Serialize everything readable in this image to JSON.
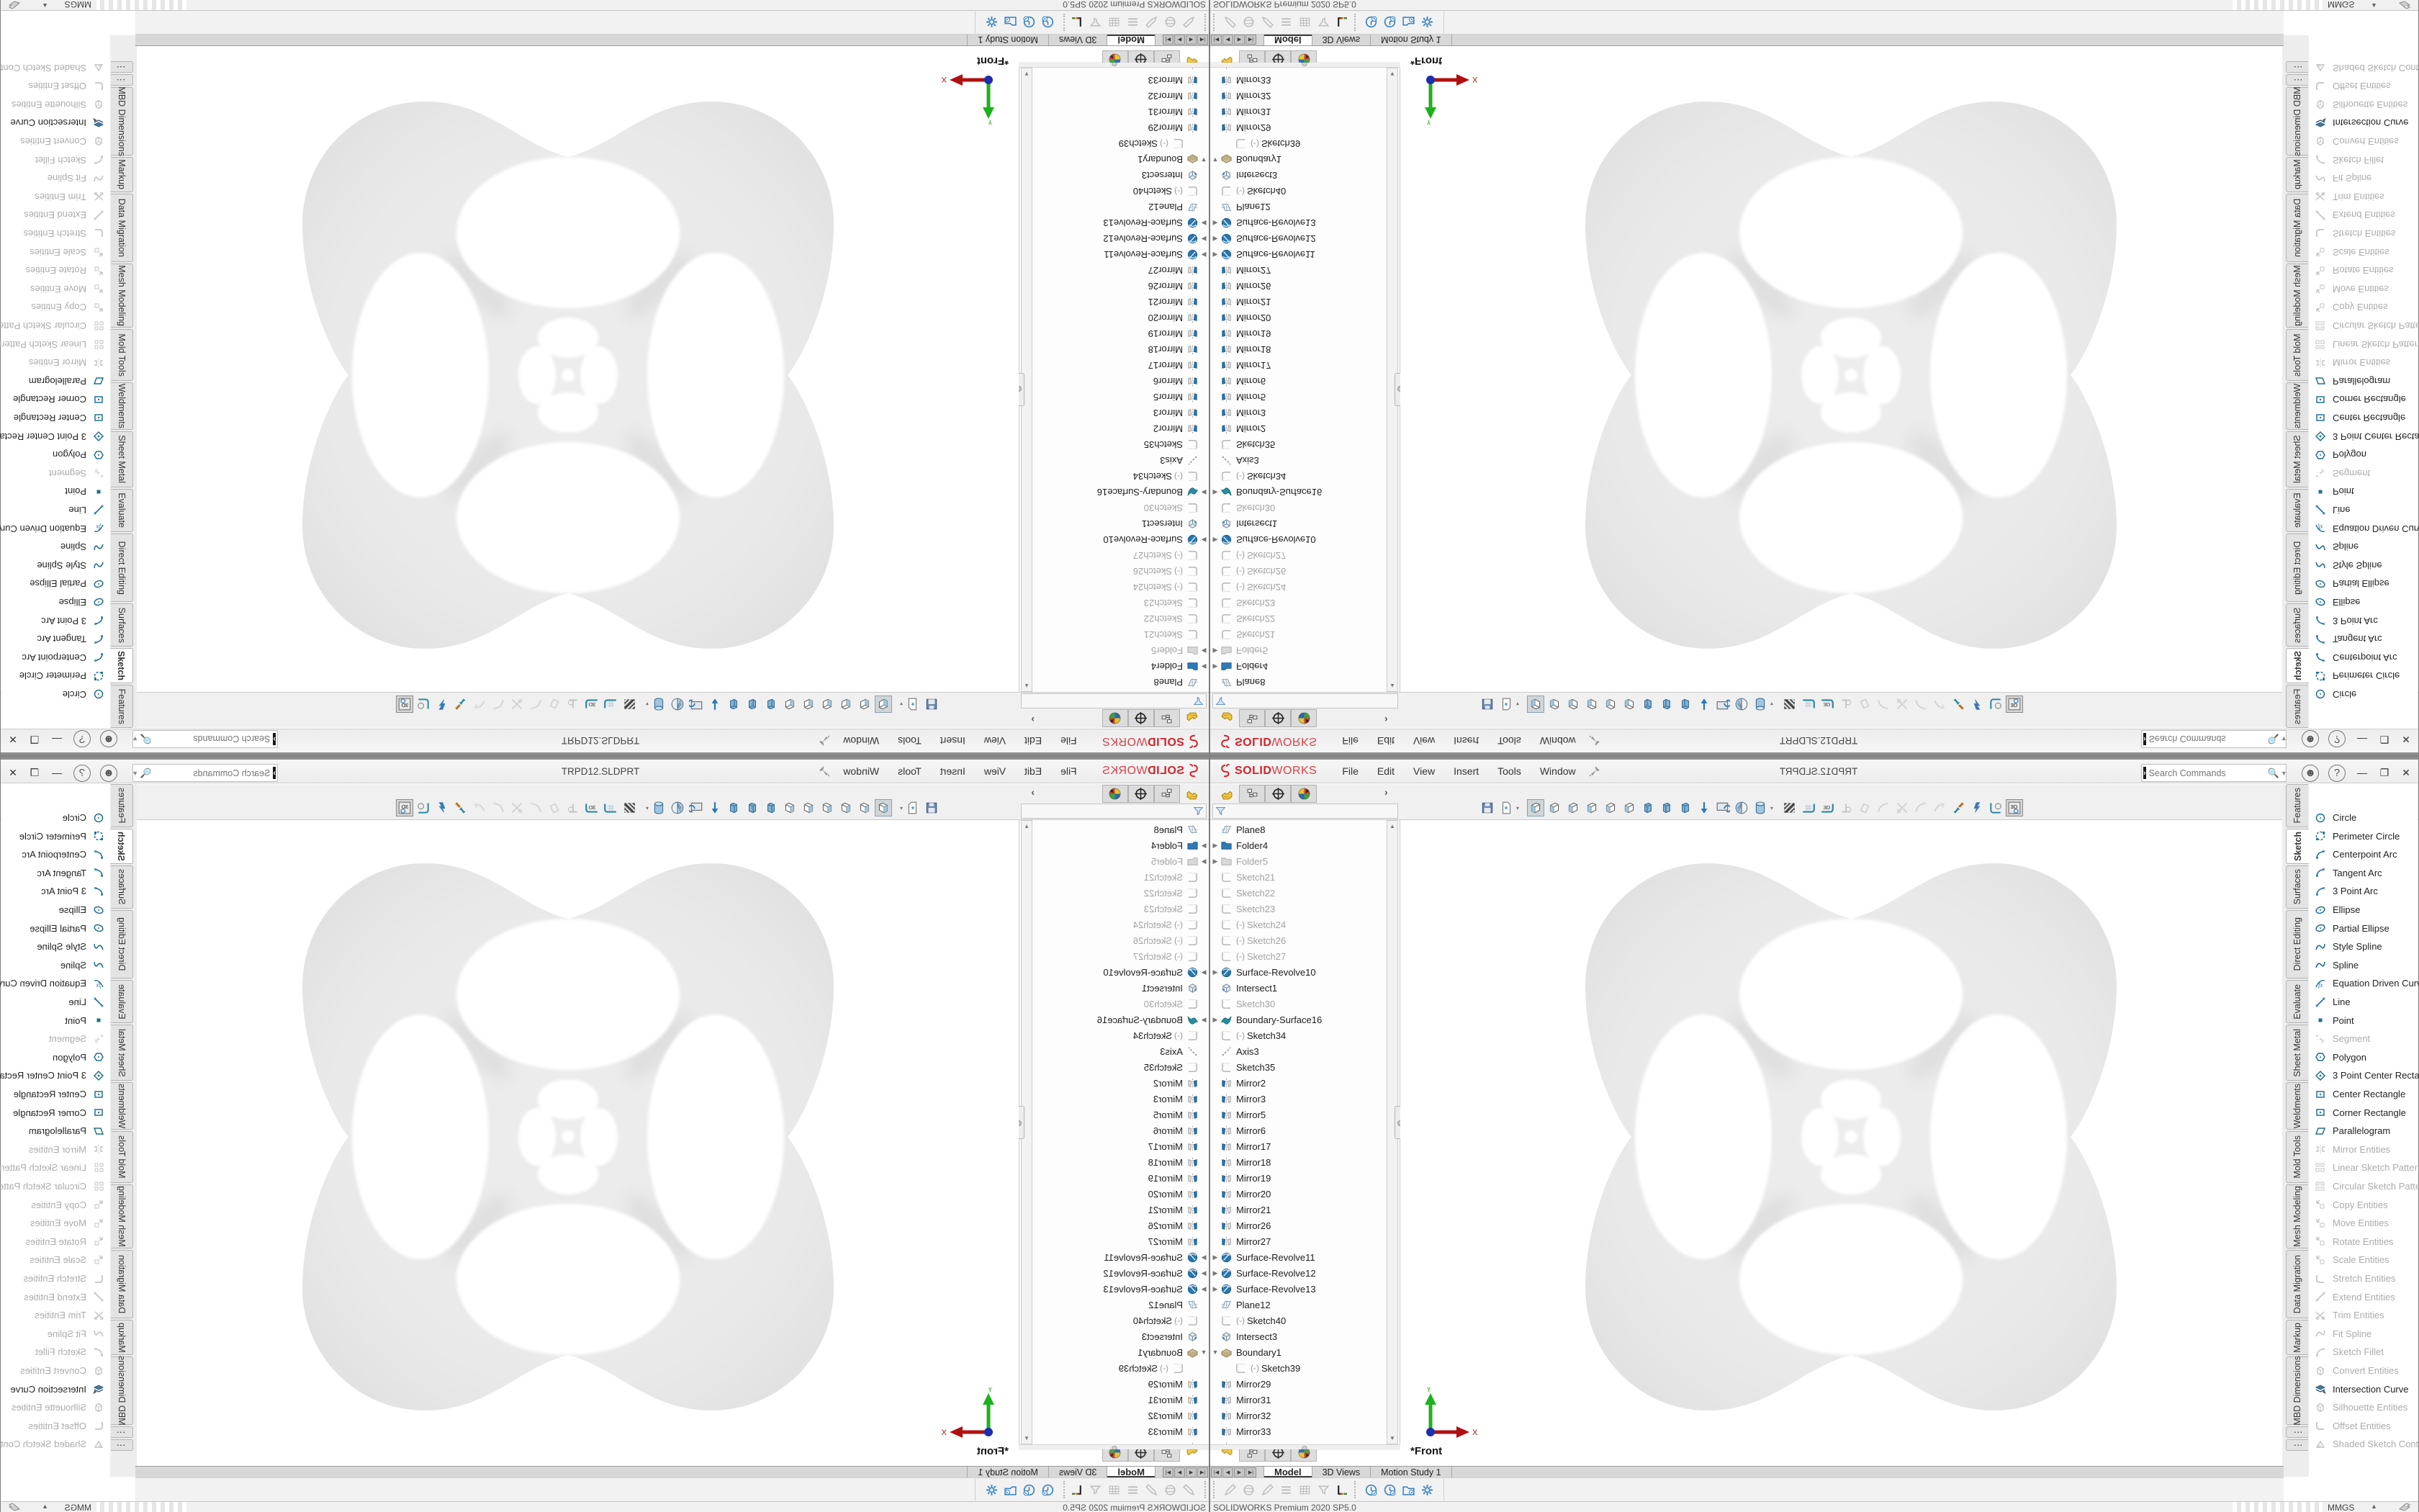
{
  "app": {
    "brand_bold": "SOLID",
    "brand_light": "WORKS",
    "statusbar_left": "SOLIDWORKS Premium 2020 SP5.0",
    "units": "MMGS"
  },
  "menubar": {
    "menus": [
      "File",
      "Edit",
      "View",
      "Insert",
      "Tools",
      "Window"
    ],
    "title": "TRPD12.SLDPRT",
    "search_placeholder": "Search Commands",
    "right_icons": [
      "user-account-icon",
      "help-icon"
    ],
    "window_controls": [
      {
        "name": "minimize-button",
        "glyph": "—"
      },
      {
        "name": "restore-button",
        "glyph": "❐"
      },
      {
        "name": "close-button",
        "glyph": "✕"
      }
    ]
  },
  "left_panel": {
    "header_tabs": [
      {
        "name": "featuremanager-tab",
        "icon": "part-icon",
        "active": true
      },
      {
        "name": "propertymanager-tab",
        "icon": "property-icon"
      },
      {
        "name": "configurationmanager-tab",
        "icon": "target-icon"
      },
      {
        "name": "displaymanager-tab",
        "icon": "display-ball-icon"
      }
    ],
    "chevron": "›",
    "filter_icon": "filter-funnel-icon"
  },
  "view_toolbar": {
    "icons": [
      {
        "n": "save-icon",
        "k": "floppy"
      },
      {
        "n": "print-preview-icon",
        "k": "page",
        "caret": true
      },
      {
        "sp": 8
      },
      {
        "n": "view-front-icon",
        "k": "cube",
        "pressed": true
      },
      {
        "n": "view-back-icon",
        "k": "cube"
      },
      {
        "n": "view-left-icon",
        "k": "cube"
      },
      {
        "n": "view-right-icon",
        "k": "cube"
      },
      {
        "n": "view-top-icon",
        "k": "cube"
      },
      {
        "n": "view-bottom-icon",
        "k": "cube"
      },
      {
        "n": "view-isometric-icon",
        "k": "prism"
      },
      {
        "n": "view-trimetric-icon",
        "k": "prism"
      },
      {
        "n": "view-dimetric-icon",
        "k": "prism"
      },
      {
        "n": "normal-to-icon",
        "k": "darr"
      },
      {
        "n": "view-selector-icon",
        "k": "monitor"
      },
      {
        "n": "section-view-icon",
        "k": "section"
      },
      {
        "n": "display-style-icon",
        "k": "cyl",
        "caret": true
      },
      {
        "sp": 8
      },
      {
        "n": "appearance-texture-icon",
        "k": "tex"
      },
      {
        "n": "grid-floor-icon",
        "k": "grid"
      },
      {
        "n": "grid-3d-icon",
        "k": "grid3d"
      },
      {
        "n": "reference-point-icon",
        "k": "g1",
        "gray": true
      },
      {
        "n": "instant3d-icon",
        "k": "g2",
        "gray": true
      },
      {
        "n": "offset-curve-icon",
        "k": "g3",
        "gray": true
      },
      {
        "n": "trim-tool-icon",
        "k": "g4",
        "gray": true
      },
      {
        "n": "fillet-arc-icon",
        "k": "g3",
        "gray": true
      },
      {
        "n": "spline-pencil-icon",
        "k": "g5",
        "gray": true
      },
      {
        "n": "sketch-ink-icon",
        "k": "brush"
      },
      {
        "n": "quick-snap-icon",
        "k": "bolt"
      },
      {
        "n": "sketch-picture-icon",
        "k": "cornc"
      },
      {
        "n": "3d-sketch-icon",
        "k": "box3d",
        "boxed": true
      }
    ]
  },
  "feature_tree": {
    "items": [
      {
        "label": "Plane8",
        "icon": "plane-icon"
      },
      {
        "label": "Folder4",
        "icon": "folder-icon",
        "arrow": "r"
      },
      {
        "label": "Folder5",
        "icon": "folder-gray-icon",
        "arrow": "r",
        "gray": true
      },
      {
        "label": "Sketch21",
        "icon": "sketch-icon",
        "gray": true
      },
      {
        "label": "Sketch22",
        "icon": "sketch-icon",
        "gray": true
      },
      {
        "label": "Sketch23",
        "icon": "sketch-icon",
        "gray": true
      },
      {
        "label": "Sketch24",
        "icon": "sketch-icon",
        "gray": true,
        "prefix": "(-)"
      },
      {
        "label": "Sketch26",
        "icon": "sketch-icon",
        "gray": true,
        "prefix": "(-)"
      },
      {
        "label": "Sketch27",
        "icon": "sketch-icon",
        "gray": true,
        "prefix": "(-)"
      },
      {
        "label": "Surface-Revolve10",
        "icon": "surface-revolve-icon",
        "arrow": "r"
      },
      {
        "label": "Intersect1",
        "icon": "intersect-icon"
      },
      {
        "label": "Sketch30",
        "icon": "sketch-icon",
        "gray": true
      },
      {
        "label": "Boundary-Surface16",
        "icon": "boundary-surface-icon",
        "arrow": "r"
      },
      {
        "label": "Sketch34",
        "icon": "sketch-icon",
        "prefix": "(-)"
      },
      {
        "label": "Axis3",
        "icon": "axis-icon"
      },
      {
        "label": "Sketch35",
        "icon": "sketch-icon"
      },
      {
        "label": "Mirror2",
        "icon": "mirror-icon"
      },
      {
        "label": "Mirror3",
        "icon": "mirror-icon"
      },
      {
        "label": "Mirror5",
        "icon": "mirror-icon"
      },
      {
        "label": "Mirror6",
        "icon": "mirror-icon"
      },
      {
        "label": "Mirror17",
        "icon": "mirror-icon"
      },
      {
        "label": "Mirror18",
        "icon": "mirror-icon"
      },
      {
        "label": "Mirror19",
        "icon": "mirror-icon"
      },
      {
        "label": "Mirror20",
        "icon": "mirror-icon"
      },
      {
        "label": "Mirror21",
        "icon": "mirror-icon"
      },
      {
        "label": "Mirror26",
        "icon": "mirror-icon"
      },
      {
        "label": "Mirror27",
        "icon": "mirror-icon"
      },
      {
        "label": "Surface-Revolve11",
        "icon": "surface-revolve-icon",
        "arrow": "r"
      },
      {
        "label": "Surface-Revolve12",
        "icon": "surface-revolve-icon",
        "arrow": "r"
      },
      {
        "label": "Surface-Revolve13",
        "icon": "surface-revolve-icon",
        "arrow": "r"
      },
      {
        "label": "Plane12",
        "icon": "plane-icon"
      },
      {
        "label": "Sketch40",
        "icon": "sketch-icon",
        "prefix": "(-)"
      },
      {
        "label": "Intersect3",
        "icon": "intersect-icon"
      },
      {
        "label": "Boundary1",
        "icon": "boundary-icon",
        "arrow": "d"
      },
      {
        "label": "Sketch39",
        "icon": "sketch-icon",
        "prefix": "(-)",
        "indent": 1
      },
      {
        "label": "Mirror29",
        "icon": "mirror-icon"
      },
      {
        "label": "Mirror31",
        "icon": "mirror-icon"
      },
      {
        "label": "Mirror32",
        "icon": "mirror-icon"
      },
      {
        "label": "Mirror33",
        "icon": "mirror-icon"
      },
      {
        "label": "",
        "icon": "mirror-icon",
        "clipped": true
      }
    ]
  },
  "right_tabs": {
    "tabs": [
      {
        "label": "Features"
      },
      {
        "label": "Sketch",
        "active": true
      },
      {
        "label": "Surfaces"
      },
      {
        "label": "Direct Editing"
      },
      {
        "label": "Evaluate"
      },
      {
        "label": "Sheet Metal"
      },
      {
        "label": "Weldments"
      },
      {
        "label": "Mold Tools"
      },
      {
        "label": "Mesh Modeling"
      },
      {
        "label": "Data Migration"
      },
      {
        "label": "Markup"
      },
      {
        "label": "MBD Dimensions"
      },
      {
        "label": "⋮",
        "dots": true
      },
      {
        "label": "⋮",
        "dots": true
      }
    ]
  },
  "sketch_tools": {
    "items": [
      {
        "label": "Circle",
        "icon": "circle-icon",
        "on": true
      },
      {
        "label": "Perimeter Circle",
        "icon": "perimeter-circle-icon",
        "on": true
      },
      {
        "label": "Centerpoint Arc",
        "icon": "arc-icon",
        "on": true
      },
      {
        "label": "Tangent Arc",
        "icon": "arc-icon",
        "on": true
      },
      {
        "label": "3 Point Arc",
        "icon": "arc-icon",
        "on": true
      },
      {
        "label": "Ellipse",
        "icon": "ellipse-icon",
        "on": true
      },
      {
        "label": "Partial Ellipse",
        "icon": "ellipse-icon",
        "on": true
      },
      {
        "label": "Style Spline",
        "icon": "spline-icon",
        "on": true
      },
      {
        "label": "Spline",
        "icon": "spline-icon",
        "on": true
      },
      {
        "label": "Equation Driven Curve",
        "icon": "fx-curve-icon",
        "on": true
      },
      {
        "label": "Line",
        "icon": "line-icon",
        "on": true
      },
      {
        "label": "Point",
        "icon": "point-icon",
        "on": true
      },
      {
        "label": "Segment",
        "icon": "segment-icon",
        "on": false
      },
      {
        "label": "Polygon",
        "icon": "polygon-icon",
        "on": true
      },
      {
        "label": "3 Point Center Recta...",
        "icon": "diamond-rect-icon",
        "on": true
      },
      {
        "label": "Center Rectangle",
        "icon": "rect-icon",
        "on": true
      },
      {
        "label": "Corner Rectangle",
        "icon": "rect-icon",
        "on": true
      },
      {
        "label": "Parallelogram",
        "icon": "parallelogram-icon",
        "on": true
      },
      {
        "label": "Mirror Entities",
        "icon": "mirror-entities-icon",
        "on": false
      },
      {
        "label": "Linear Sketch Pattern",
        "icon": "pattern-icon",
        "on": false
      },
      {
        "label": "Circular Sketch Pattern",
        "icon": "pattern-icon",
        "on": false
      },
      {
        "label": "Copy Entities",
        "icon": "transform-icon",
        "on": false
      },
      {
        "label": "Move Entities",
        "icon": "transform-icon",
        "on": false
      },
      {
        "label": "Rotate Entities",
        "icon": "transform-icon",
        "on": false
      },
      {
        "label": "Scale Entities",
        "icon": "transform-icon",
        "on": false
      },
      {
        "label": "Stretch Entities",
        "icon": "corner-icon",
        "on": false
      },
      {
        "label": "Extend Entities",
        "icon": "line-icon",
        "on": false
      },
      {
        "label": "Trim Entities",
        "icon": "trim-icon",
        "on": false
      },
      {
        "label": "Fit Spline",
        "icon": "spline-icon",
        "on": false
      },
      {
        "label": "Sketch Fillet",
        "icon": "arc-icon",
        "on": false
      },
      {
        "label": "Convert Entities",
        "icon": "convert-icon",
        "on": false
      },
      {
        "label": "Intersection Curve",
        "icon": "intersection-curve-icon",
        "on": true
      },
      {
        "label": "Silhouette Entities",
        "icon": "convert-icon",
        "on": false
      },
      {
        "label": "Offset Entities",
        "icon": "corner-icon",
        "on": false
      },
      {
        "label": "Shaded Sketch Cont...",
        "icon": "shaded-contour-icon",
        "on": false
      }
    ]
  },
  "doc_tabs": {
    "nav": [
      "|◀",
      "◀",
      "▶",
      "▶|"
    ],
    "tabs": [
      {
        "label": "Model",
        "active": true
      },
      {
        "label": "3D Views"
      },
      {
        "label": "Motion Study 1"
      }
    ]
  },
  "bottom_toolbar": {
    "icons": [
      {
        "n": "appearance-pencil-icon",
        "k": "pencil"
      },
      {
        "n": "appearance-sphere-icon",
        "k": "sphere"
      },
      {
        "n": "edit-appearance-icon",
        "k": "pencil"
      },
      {
        "n": "display-lines-icon",
        "k": "lines"
      },
      {
        "n": "equations-table-icon",
        "k": "table"
      },
      {
        "n": "filter-graphics-icon",
        "k": "filt"
      },
      {
        "n": "performance-chart-icon",
        "k": "chart",
        "color": true
      },
      {
        "hd": true
      },
      {
        "n": "performance-monitor-icon",
        "k": "clock",
        "blue": true
      },
      {
        "n": "timer-icon",
        "k": "clock",
        "blue": true
      },
      {
        "n": "pack-and-go-icon",
        "k": "folderb",
        "blue": true
      },
      {
        "n": "settings-gear-icon",
        "k": "gear",
        "blue": true
      }
    ]
  },
  "graphics": {
    "view_label": "*Front",
    "axis_x_label": "X",
    "axis_y_label": "Y"
  },
  "colors": {
    "accent_blue": "#2f7fc1",
    "icon_teal": "#21708d",
    "logo_red": "#d2232a",
    "model_gray": "#e9e9e9",
    "disabled_gray": "#ababab"
  }
}
